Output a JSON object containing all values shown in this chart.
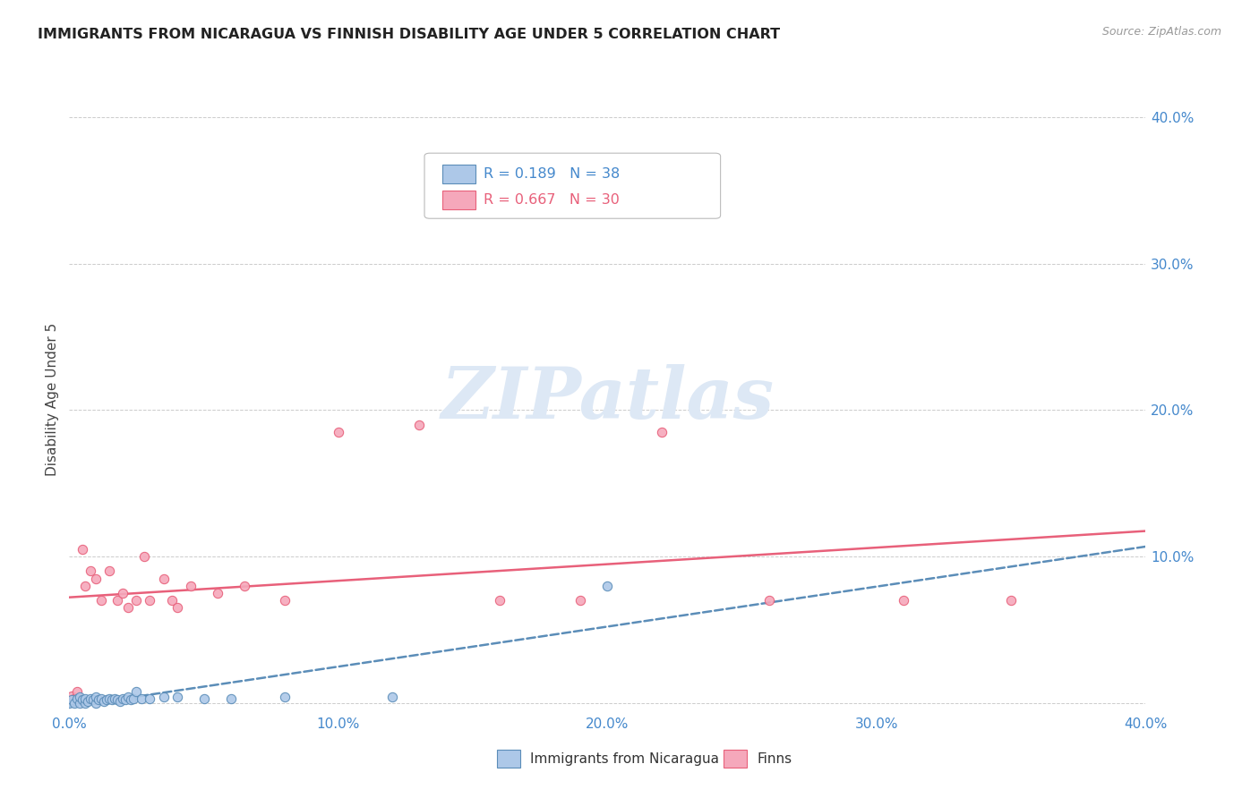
{
  "title": "IMMIGRANTS FROM NICARAGUA VS FINNISH DISABILITY AGE UNDER 5 CORRELATION CHART",
  "source": "Source: ZipAtlas.com",
  "ylabel": "Disability Age Under 5",
  "xlim": [
    0.0,
    0.4
  ],
  "ylim": [
    -0.005,
    0.42
  ],
  "nicaragua_color": "#adc8e8",
  "finns_color": "#f5a8bb",
  "nicaragua_line_color": "#5b8db8",
  "finns_line_color": "#e8607a",
  "watermark_color": "#dde8f5",
  "legend_r1": "R = 0.189",
  "legend_n1": "N = 38",
  "legend_r2": "R = 0.667",
  "legend_n2": "N = 30",
  "nicaragua_x": [
    0.0,
    0.001,
    0.002,
    0.003,
    0.004,
    0.004,
    0.005,
    0.006,
    0.006,
    0.007,
    0.008,
    0.009,
    0.01,
    0.01,
    0.011,
    0.012,
    0.013,
    0.014,
    0.015,
    0.016,
    0.017,
    0.018,
    0.019,
    0.02,
    0.021,
    0.022,
    0.023,
    0.024,
    0.025,
    0.027,
    0.03,
    0.035,
    0.04,
    0.05,
    0.06,
    0.08,
    0.12,
    0.2
  ],
  "nicaragua_y": [
    0.0,
    0.002,
    0.0,
    0.003,
    0.0,
    0.004,
    0.002,
    0.0,
    0.003,
    0.001,
    0.003,
    0.002,
    0.0,
    0.004,
    0.002,
    0.003,
    0.001,
    0.002,
    0.003,
    0.002,
    0.003,
    0.002,
    0.001,
    0.003,
    0.002,
    0.004,
    0.002,
    0.003,
    0.008,
    0.003,
    0.003,
    0.004,
    0.004,
    0.003,
    0.003,
    0.004,
    0.004,
    0.08
  ],
  "finns_x": [
    0.001,
    0.002,
    0.003,
    0.005,
    0.006,
    0.008,
    0.01,
    0.012,
    0.015,
    0.018,
    0.02,
    0.022,
    0.025,
    0.028,
    0.03,
    0.035,
    0.038,
    0.04,
    0.045,
    0.055,
    0.065,
    0.08,
    0.1,
    0.13,
    0.16,
    0.19,
    0.22,
    0.26,
    0.31,
    0.35
  ],
  "finns_y": [
    0.005,
    0.003,
    0.008,
    0.105,
    0.08,
    0.09,
    0.085,
    0.07,
    0.09,
    0.07,
    0.075,
    0.065,
    0.07,
    0.1,
    0.07,
    0.085,
    0.07,
    0.065,
    0.08,
    0.075,
    0.08,
    0.07,
    0.185,
    0.19,
    0.07,
    0.07,
    0.185,
    0.07,
    0.07,
    0.07
  ]
}
